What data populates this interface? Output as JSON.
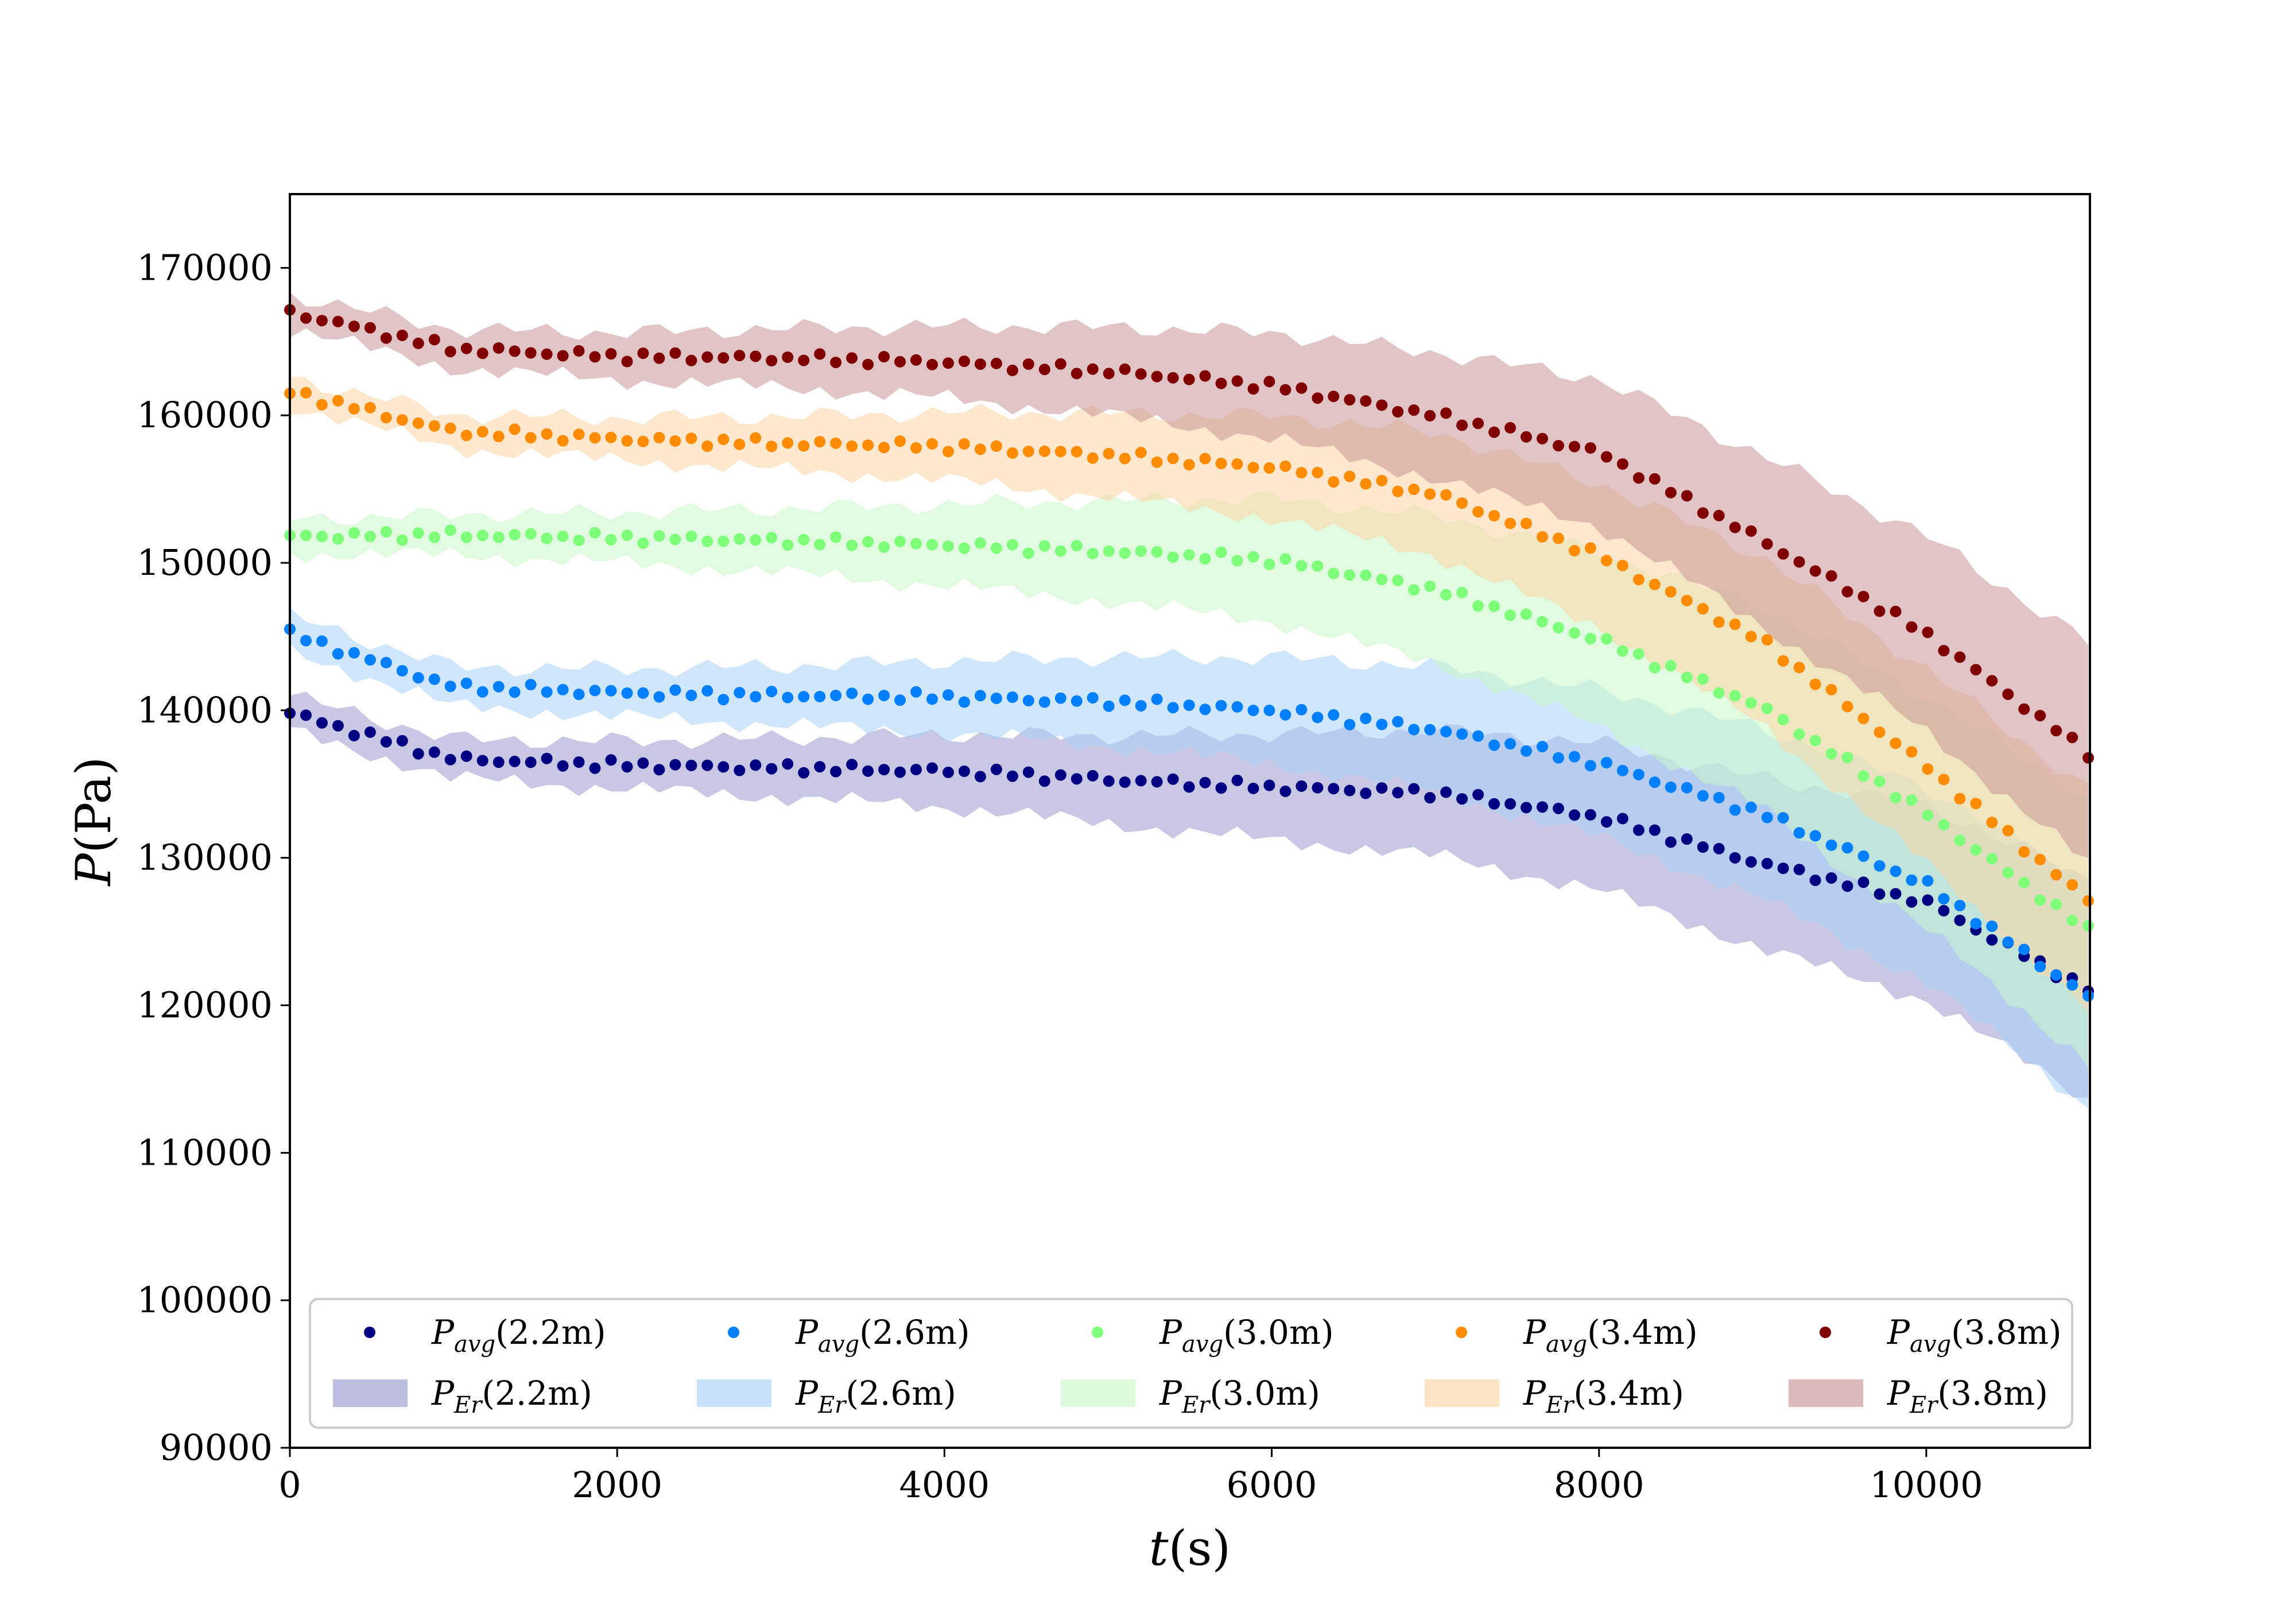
{
  "chart_data": {
    "type": "scatter",
    "title": "",
    "xlabel_var": "t",
    "xlabel_unit": "(s)",
    "ylabel_var": "P",
    "ylabel_unit": "(Pa)",
    "xlim": [
      0,
      11000
    ],
    "ylim": [
      90000,
      175000
    ],
    "xticks": [
      0,
      2000,
      4000,
      6000,
      8000,
      10000
    ],
    "yticks": [
      90000,
      100000,
      110000,
      120000,
      130000,
      140000,
      150000,
      160000,
      170000
    ],
    "xtick_labels": [
      "0",
      "2000",
      "4000",
      "6000",
      "8000",
      "10000"
    ],
    "ytick_labels": [
      "90000",
      "100000",
      "110000",
      "120000",
      "130000",
      "140000",
      "150000",
      "160000",
      "170000"
    ],
    "grid": false,
    "legend_position": "bottom",
    "band_note": "shaded error band per series, half-width grows with time",
    "series": [
      {
        "name": "P_avg(2.2m)",
        "legend_avg": {
          "main": "P",
          "sub": "avg",
          "tail": "(2.2m)"
        },
        "legend_err": {
          "main": "P",
          "sub": "Er",
          "tail": "(2.2m)"
        },
        "color": "#000080",
        "band_color": "#9b9bcf",
        "x": [
          0,
          1000,
          2000,
          3000,
          4000,
          5000,
          6000,
          7000,
          8000,
          9000,
          10000,
          11000
        ],
        "y": [
          139800,
          136700,
          136300,
          136100,
          135900,
          135300,
          134800,
          134400,
          132800,
          129600,
          127000,
          121000
        ],
        "err_start": 1200,
        "err_end": 7500
      },
      {
        "name": "P_avg(2.6m)",
        "legend_avg": {
          "main": "P",
          "sub": "avg",
          "tail": "(2.6m)"
        },
        "legend_err": {
          "main": "P",
          "sub": "Er",
          "tail": "(2.6m)"
        },
        "color": "#0080ff",
        "band_color": "#a9d1f7",
        "x": [
          0,
          1000,
          2000,
          3000,
          4000,
          5000,
          6000,
          7000,
          8000,
          9000,
          10000,
          11000
        ],
        "y": [
          145200,
          141600,
          141200,
          141000,
          140900,
          140600,
          140000,
          138700,
          136400,
          133000,
          128200,
          120500
        ],
        "err_start": 1200,
        "err_end": 7500
      },
      {
        "name": "P_avg(3.0m)",
        "legend_avg": {
          "main": "P",
          "sub": "avg",
          "tail": "(3.0m)"
        },
        "legend_err": {
          "main": "P",
          "sub": "Er",
          "tail": "(3.0m)"
        },
        "color": "#7dff7a",
        "band_color": "#c9f8c6",
        "x": [
          0,
          1000,
          2000,
          3000,
          4000,
          5000,
          6000,
          7000,
          8000,
          9000,
          10000,
          11000
        ],
        "y": [
          151800,
          151900,
          151700,
          151500,
          151200,
          150800,
          150200,
          148200,
          144800,
          140200,
          133000,
          125000
        ],
        "err_start": 1200,
        "err_end": 9000
      },
      {
        "name": "P_avg(3.4m)",
        "legend_avg": {
          "main": "P",
          "sub": "avg",
          "tail": "(3.4m)"
        },
        "legend_err": {
          "main": "P",
          "sub": "Er",
          "tail": "(3.4m)"
        },
        "color": "#ff8c00",
        "band_color": "#fbd6a6",
        "x": [
          0,
          1000,
          2000,
          3000,
          4000,
          5000,
          6000,
          7000,
          8000,
          9000,
          10000,
          11000
        ],
        "y": [
          161600,
          158900,
          158400,
          158100,
          157900,
          157300,
          156500,
          154700,
          150500,
          144700,
          136200,
          127000
        ],
        "err_start": 1000,
        "err_end": 7500
      },
      {
        "name": "P_avg(3.8m)",
        "legend_avg": {
          "main": "P",
          "sub": "avg",
          "tail": "(3.8m)"
        },
        "legend_err": {
          "main": "P",
          "sub": "Er",
          "tail": "(3.8m)"
        },
        "color": "#800000",
        "band_color": "#c99496",
        "x": [
          0,
          1000,
          2000,
          3000,
          4000,
          5000,
          6000,
          7000,
          8000,
          9000,
          10000,
          11000
        ],
        "y": [
          167000,
          164500,
          164000,
          163900,
          163600,
          163000,
          162000,
          160000,
          157500,
          151500,
          145200,
          137000
        ],
        "err_start": 1200,
        "err_end": 7500
      }
    ]
  }
}
